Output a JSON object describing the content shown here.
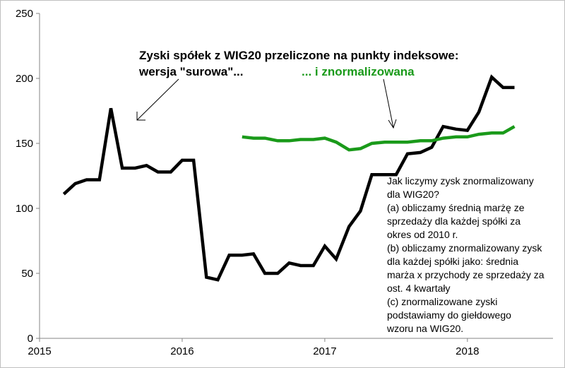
{
  "chart_data": {
    "type": "line",
    "xlim": [
      2015,
      2018.6
    ],
    "ylim": [
      0,
      250
    ],
    "yticks": [
      0,
      50,
      100,
      150,
      200,
      250
    ],
    "xticks": [
      2015,
      2016,
      2017,
      2018
    ],
    "ytick_labels": [
      "0",
      "50",
      "100",
      "150",
      "200",
      "250"
    ],
    "xtick_labels": [
      "2015",
      "2016",
      "2017",
      "2018"
    ],
    "grid": false,
    "colors": {
      "raw": "#000000",
      "normalized": "#1a9a1a"
    },
    "series": [
      {
        "key": "raw",
        "x": [
          2015.17,
          2015.25,
          2015.33,
          2015.42,
          2015.5,
          2015.58,
          2015.67,
          2015.75,
          2015.83,
          2015.92,
          2016.0,
          2016.08,
          2016.17,
          2016.25,
          2016.33,
          2016.42,
          2016.5,
          2016.58,
          2016.67,
          2016.75,
          2016.83,
          2016.92,
          2017.0,
          2017.08,
          2017.17,
          2017.25,
          2017.33,
          2017.42,
          2017.5,
          2017.58,
          2017.67,
          2017.75,
          2017.83,
          2017.92,
          2018.0,
          2018.08,
          2018.17,
          2018.25,
          2018.33
        ],
        "values": [
          111,
          119,
          122,
          122,
          177,
          131,
          131,
          133,
          128,
          128,
          137,
          137,
          47,
          45,
          64,
          64,
          65,
          50,
          50,
          58,
          56,
          56,
          71,
          61,
          86,
          98,
          126,
          126,
          126,
          142,
          143,
          147,
          163,
          161,
          160,
          174,
          201,
          193,
          193
        ]
      },
      {
        "key": "normalized",
        "x": [
          2016.42,
          2016.5,
          2016.58,
          2016.67,
          2016.75,
          2016.83,
          2016.92,
          2017.0,
          2017.08,
          2017.17,
          2017.25,
          2017.33,
          2017.42,
          2017.5,
          2017.58,
          2017.67,
          2017.75,
          2017.83,
          2017.92,
          2018.0,
          2018.08,
          2018.17,
          2018.25,
          2018.33
        ],
        "values": [
          155,
          154,
          154,
          152,
          152,
          153,
          153,
          154,
          151,
          145,
          146,
          150,
          151,
          151,
          151,
          152,
          152,
          154,
          155,
          155,
          157,
          158,
          158,
          163
        ]
      }
    ]
  },
  "annotations": {
    "title_line1": "Zyski spółek z WIG20 przeliczone na punkty indeksowe:",
    "title_line2": "wersja \"surowa\"...",
    "green_label": "... i znormalizowana",
    "note_lines": [
      "Jak liczymy zysk znormalizowany",
      "dla WIG20?",
      "(a) obliczamy średnią marżę ze",
      "sprzedaży dla każdej spółki za",
      "okres od 2010 r.",
      "(b) obliczamy znormalizowany zysk",
      "dla każdej spółki jako: średnia",
      "marża x przychody ze sprzedaży za",
      "ost. 4 kwartały",
      "(c) znormalizowane zyski",
      "podstawiamy do giełdowego",
      "wzoru na WIG20."
    ]
  }
}
